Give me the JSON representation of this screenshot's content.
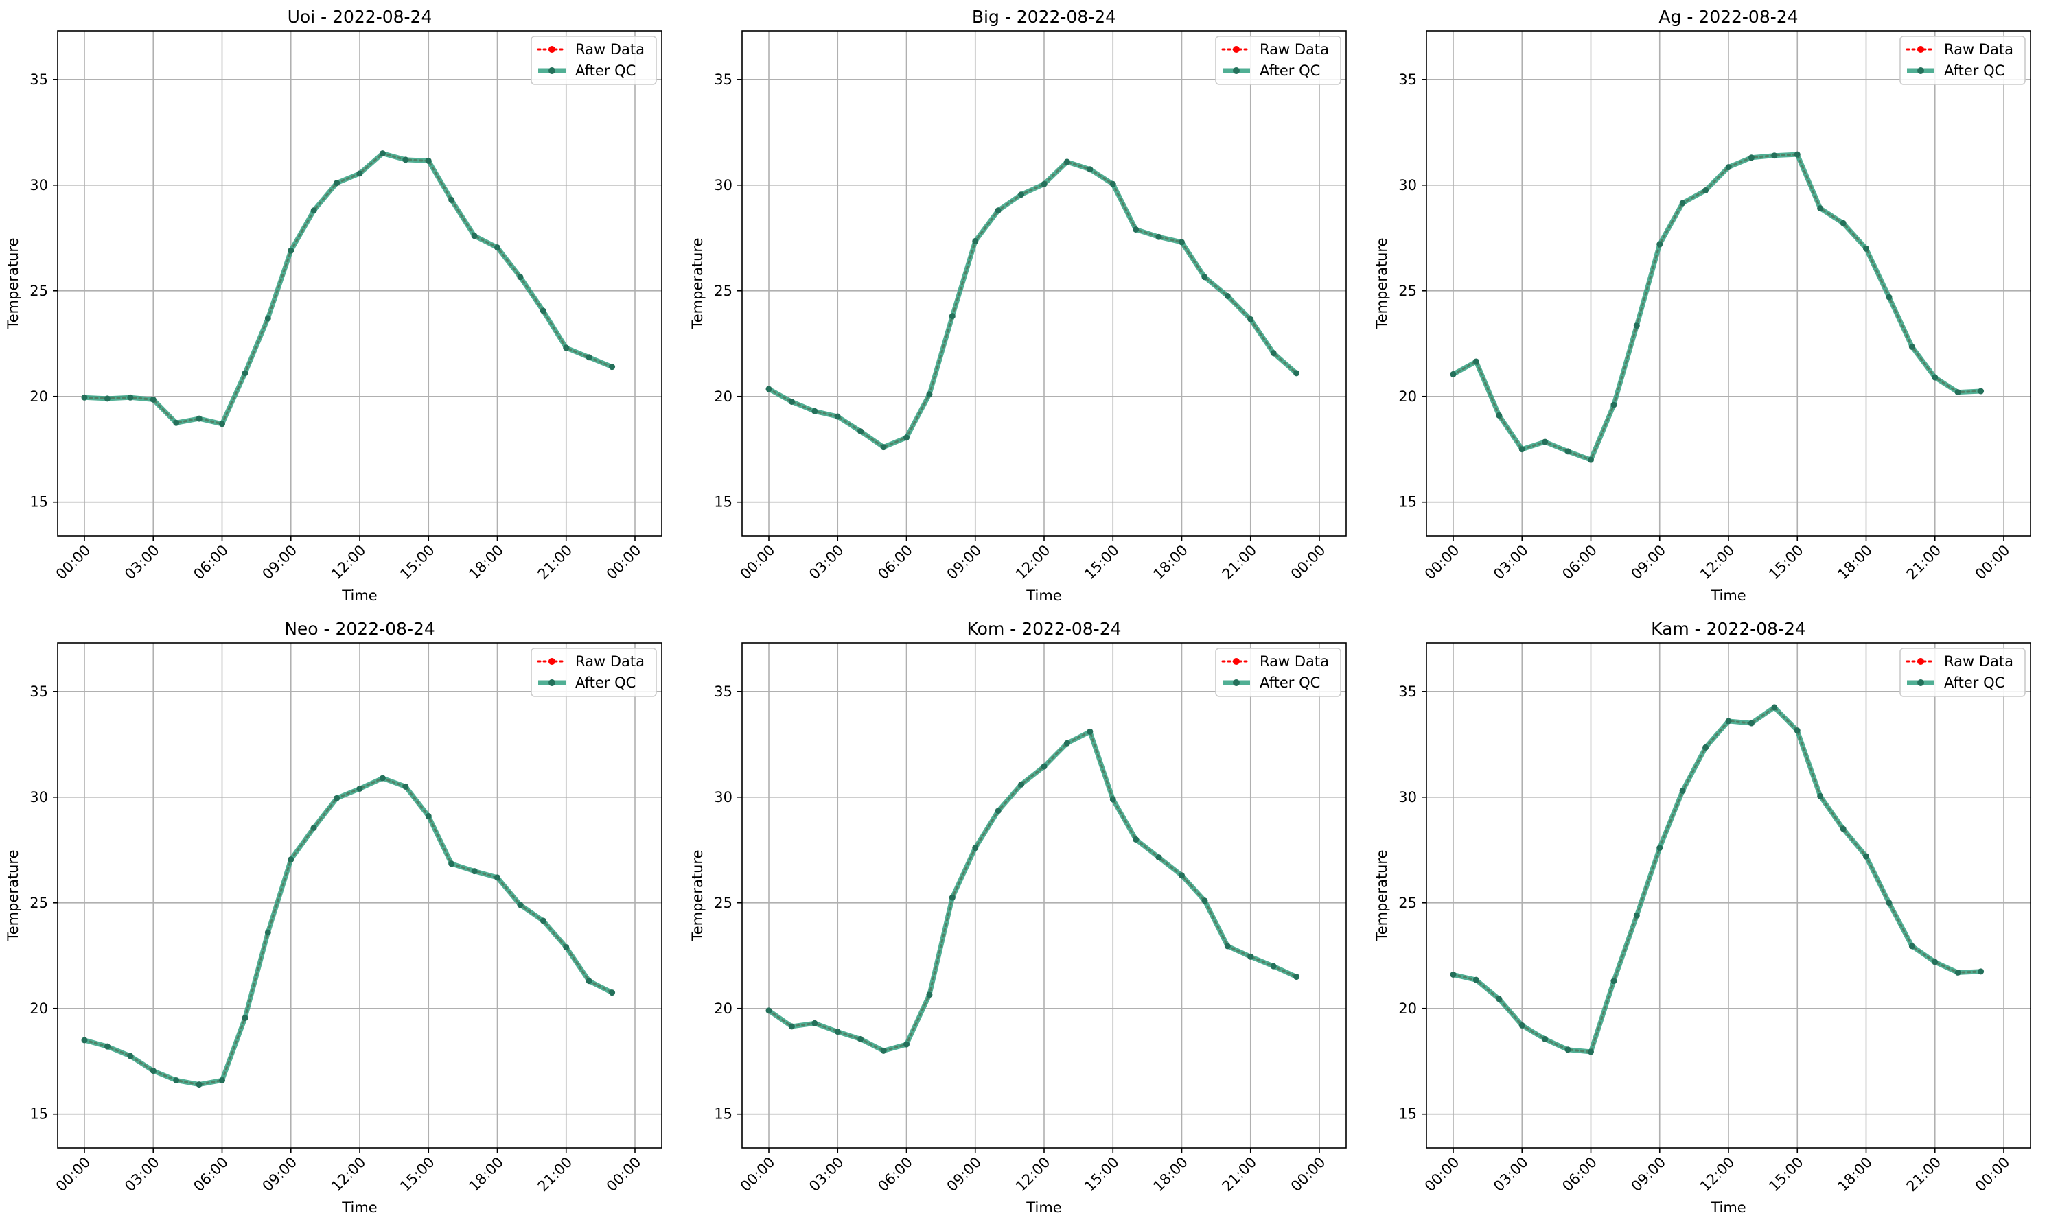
{
  "chart_data": [
    {
      "type": "line",
      "title": "Uoi - 2022-08-24",
      "xlabel": "Time",
      "ylabel": "Temperature",
      "ylim": [
        13.4,
        37.3
      ],
      "yticks": [
        15,
        20,
        25,
        30,
        35
      ],
      "xticks": [
        "00:00",
        "03:00",
        "06:00",
        "09:00",
        "12:00",
        "15:00",
        "18:00",
        "21:00",
        "00:00"
      ],
      "x": [
        "00:00",
        "01:00",
        "02:00",
        "03:00",
        "04:00",
        "05:00",
        "06:00",
        "07:00",
        "08:00",
        "09:00",
        "10:00",
        "11:00",
        "12:00",
        "13:00",
        "14:00",
        "15:00",
        "16:00",
        "17:00",
        "18:00",
        "19:00",
        "20:00",
        "21:00",
        "22:00",
        "23:00"
      ],
      "grid": true,
      "legend": "top-right",
      "series": [
        {
          "name": "Raw Data",
          "color": "#ff0000",
          "style": "dotted",
          "values": [
            19.95,
            19.9,
            19.95,
            19.85,
            18.75,
            18.95,
            18.7,
            21.1,
            23.7,
            26.9,
            28.8,
            30.1,
            30.55,
            31.5,
            31.2,
            31.15,
            29.3,
            27.6,
            27.05,
            25.65,
            24.05,
            22.3,
            21.85,
            21.4
          ]
        },
        {
          "name": "After QC",
          "color": "#2a9d7c",
          "style": "solid",
          "values": [
            19.95,
            19.9,
            19.95,
            19.85,
            18.75,
            18.95,
            18.7,
            21.1,
            23.7,
            26.9,
            28.8,
            30.1,
            30.55,
            31.5,
            31.2,
            31.15,
            29.3,
            27.6,
            27.05,
            25.65,
            24.05,
            22.3,
            21.85,
            21.4
          ]
        }
      ]
    },
    {
      "type": "line",
      "title": "Big - 2022-08-24",
      "xlabel": "Time",
      "ylabel": "Temperature",
      "ylim": [
        13.4,
        37.3
      ],
      "yticks": [
        15,
        20,
        25,
        30,
        35
      ],
      "xticks": [
        "00:00",
        "03:00",
        "06:00",
        "09:00",
        "12:00",
        "15:00",
        "18:00",
        "21:00",
        "00:00"
      ],
      "x": [
        "00:00",
        "01:00",
        "02:00",
        "03:00",
        "04:00",
        "05:00",
        "06:00",
        "07:00",
        "08:00",
        "09:00",
        "10:00",
        "11:00",
        "12:00",
        "13:00",
        "14:00",
        "15:00",
        "16:00",
        "17:00",
        "18:00",
        "19:00",
        "20:00",
        "21:00",
        "22:00",
        "23:00"
      ],
      "grid": true,
      "legend": "top-right",
      "series": [
        {
          "name": "Raw Data",
          "color": "#ff0000",
          "style": "dotted",
          "values": [
            20.35,
            19.75,
            19.3,
            19.05,
            18.35,
            17.6,
            18.05,
            20.1,
            23.8,
            27.35,
            28.8,
            29.55,
            30.05,
            31.1,
            30.75,
            30.05,
            27.9,
            27.55,
            27.3,
            25.65,
            24.75,
            23.65,
            22.05,
            21.1
          ]
        },
        {
          "name": "After QC",
          "color": "#2a9d7c",
          "style": "solid",
          "values": [
            20.35,
            19.75,
            19.3,
            19.05,
            18.35,
            17.6,
            18.05,
            20.1,
            23.8,
            27.35,
            28.8,
            29.55,
            30.05,
            31.1,
            30.75,
            30.05,
            27.9,
            27.55,
            27.3,
            25.65,
            24.75,
            23.65,
            22.05,
            21.1
          ]
        }
      ]
    },
    {
      "type": "line",
      "title": "Ag - 2022-08-24",
      "xlabel": "Time",
      "ylabel": "Temperature",
      "ylim": [
        13.4,
        37.3
      ],
      "yticks": [
        15,
        20,
        25,
        30,
        35
      ],
      "xticks": [
        "00:00",
        "03:00",
        "06:00",
        "09:00",
        "12:00",
        "15:00",
        "18:00",
        "21:00",
        "00:00"
      ],
      "x": [
        "00:00",
        "01:00",
        "02:00",
        "03:00",
        "04:00",
        "05:00",
        "06:00",
        "07:00",
        "08:00",
        "09:00",
        "10:00",
        "11:00",
        "12:00",
        "13:00",
        "14:00",
        "15:00",
        "16:00",
        "17:00",
        "18:00",
        "19:00",
        "20:00",
        "21:00",
        "22:00",
        "23:00"
      ],
      "grid": true,
      "legend": "top-right",
      "series": [
        {
          "name": "Raw Data",
          "color": "#ff0000",
          "style": "dotted",
          "values": [
            21.05,
            21.65,
            19.1,
            17.5,
            17.85,
            17.4,
            17.0,
            19.6,
            23.35,
            27.2,
            29.15,
            29.75,
            30.85,
            31.3,
            31.4,
            31.45,
            28.9,
            28.2,
            27.0,
            24.7,
            22.35,
            20.9,
            20.2,
            20.25
          ]
        },
        {
          "name": "After QC",
          "color": "#2a9d7c",
          "style": "solid",
          "values": [
            21.05,
            21.65,
            19.1,
            17.5,
            17.85,
            17.4,
            17.0,
            19.6,
            23.35,
            27.2,
            29.15,
            29.75,
            30.85,
            31.3,
            31.4,
            31.45,
            28.9,
            28.2,
            27.0,
            24.7,
            22.35,
            20.9,
            20.2,
            20.25
          ]
        }
      ]
    },
    {
      "type": "line",
      "title": "Neo - 2022-08-24",
      "xlabel": "Time",
      "ylabel": "Temperature",
      "ylim": [
        13.4,
        37.3
      ],
      "yticks": [
        15,
        20,
        25,
        30,
        35
      ],
      "xticks": [
        "00:00",
        "03:00",
        "06:00",
        "09:00",
        "12:00",
        "15:00",
        "18:00",
        "21:00",
        "00:00"
      ],
      "x": [
        "00:00",
        "01:00",
        "02:00",
        "03:00",
        "04:00",
        "05:00",
        "06:00",
        "07:00",
        "08:00",
        "09:00",
        "10:00",
        "11:00",
        "12:00",
        "13:00",
        "14:00",
        "15:00",
        "16:00",
        "17:00",
        "18:00",
        "19:00",
        "20:00",
        "21:00",
        "22:00",
        "23:00"
      ],
      "grid": true,
      "legend": "top-right",
      "series": [
        {
          "name": "Raw Data",
          "color": "#ff0000",
          "style": "dotted",
          "values": [
            18.5,
            18.2,
            17.75,
            17.05,
            16.6,
            16.4,
            16.6,
            19.55,
            23.6,
            27.05,
            28.55,
            29.95,
            30.4,
            30.9,
            30.5,
            29.1,
            26.85,
            26.5,
            26.2,
            24.9,
            24.15,
            22.9,
            21.3,
            20.75
          ]
        },
        {
          "name": "After QC",
          "color": "#2a9d7c",
          "style": "solid",
          "values": [
            18.5,
            18.2,
            17.75,
            17.05,
            16.6,
            16.4,
            16.6,
            19.55,
            23.6,
            27.05,
            28.55,
            29.95,
            30.4,
            30.9,
            30.5,
            29.1,
            26.85,
            26.5,
            26.2,
            24.9,
            24.15,
            22.9,
            21.3,
            20.75
          ]
        }
      ]
    },
    {
      "type": "line",
      "title": "Kom - 2022-08-24",
      "xlabel": "Time",
      "ylabel": "Temperature",
      "ylim": [
        13.4,
        37.3
      ],
      "yticks": [
        15,
        20,
        25,
        30,
        35
      ],
      "xticks": [
        "00:00",
        "03:00",
        "06:00",
        "09:00",
        "12:00",
        "15:00",
        "18:00",
        "21:00",
        "00:00"
      ],
      "x": [
        "00:00",
        "01:00",
        "02:00",
        "03:00",
        "04:00",
        "05:00",
        "06:00",
        "07:00",
        "08:00",
        "09:00",
        "10:00",
        "11:00",
        "12:00",
        "13:00",
        "14:00",
        "15:00",
        "16:00",
        "17:00",
        "18:00",
        "19:00",
        "20:00",
        "21:00",
        "22:00",
        "23:00"
      ],
      "grid": true,
      "legend": "top-right",
      "series": [
        {
          "name": "Raw Data",
          "color": "#ff0000",
          "style": "dotted",
          "values": [
            19.9,
            19.15,
            19.3,
            18.9,
            18.55,
            18.0,
            18.3,
            20.65,
            25.25,
            27.6,
            29.35,
            30.6,
            31.45,
            32.55,
            33.1,
            29.9,
            28.0,
            27.15,
            26.3,
            25.1,
            22.95,
            22.45,
            22.0,
            21.5
          ]
        },
        {
          "name": "After QC",
          "color": "#2a9d7c",
          "style": "solid",
          "values": [
            19.9,
            19.15,
            19.3,
            18.9,
            18.55,
            18.0,
            18.3,
            20.65,
            25.25,
            27.6,
            29.35,
            30.6,
            31.45,
            32.55,
            33.1,
            29.9,
            28.0,
            27.15,
            26.3,
            25.1,
            22.95,
            22.45,
            22.0,
            21.5
          ]
        }
      ]
    },
    {
      "type": "line",
      "title": "Kam - 2022-08-24",
      "xlabel": "Time",
      "ylabel": "Temperature",
      "ylim": [
        13.4,
        37.3
      ],
      "yticks": [
        15,
        20,
        25,
        30,
        35
      ],
      "xticks": [
        "00:00",
        "03:00",
        "06:00",
        "09:00",
        "12:00",
        "15:00",
        "18:00",
        "21:00",
        "00:00"
      ],
      "x": [
        "00:00",
        "01:00",
        "02:00",
        "03:00",
        "04:00",
        "05:00",
        "06:00",
        "07:00",
        "08:00",
        "09:00",
        "10:00",
        "11:00",
        "12:00",
        "13:00",
        "14:00",
        "15:00",
        "16:00",
        "17:00",
        "18:00",
        "19:00",
        "20:00",
        "21:00",
        "22:00",
        "23:00"
      ],
      "grid": true,
      "legend": "top-right",
      "series": [
        {
          "name": "Raw Data",
          "color": "#ff0000",
          "style": "dotted",
          "values": [
            21.6,
            21.35,
            20.45,
            19.2,
            18.55,
            18.05,
            17.95,
            21.3,
            24.4,
            27.6,
            30.3,
            32.35,
            33.6,
            33.5,
            34.25,
            33.15,
            30.05,
            28.5,
            27.2,
            25.0,
            22.95,
            22.2,
            21.7,
            21.75
          ]
        },
        {
          "name": "After QC",
          "color": "#2a9d7c",
          "style": "solid",
          "values": [
            21.6,
            21.35,
            20.45,
            19.2,
            18.55,
            18.05,
            17.95,
            21.3,
            24.4,
            27.6,
            30.3,
            32.35,
            33.6,
            33.5,
            34.25,
            33.15,
            30.05,
            28.5,
            27.2,
            25.0,
            22.95,
            22.2,
            21.7,
            21.75
          ]
        }
      ]
    }
  ]
}
